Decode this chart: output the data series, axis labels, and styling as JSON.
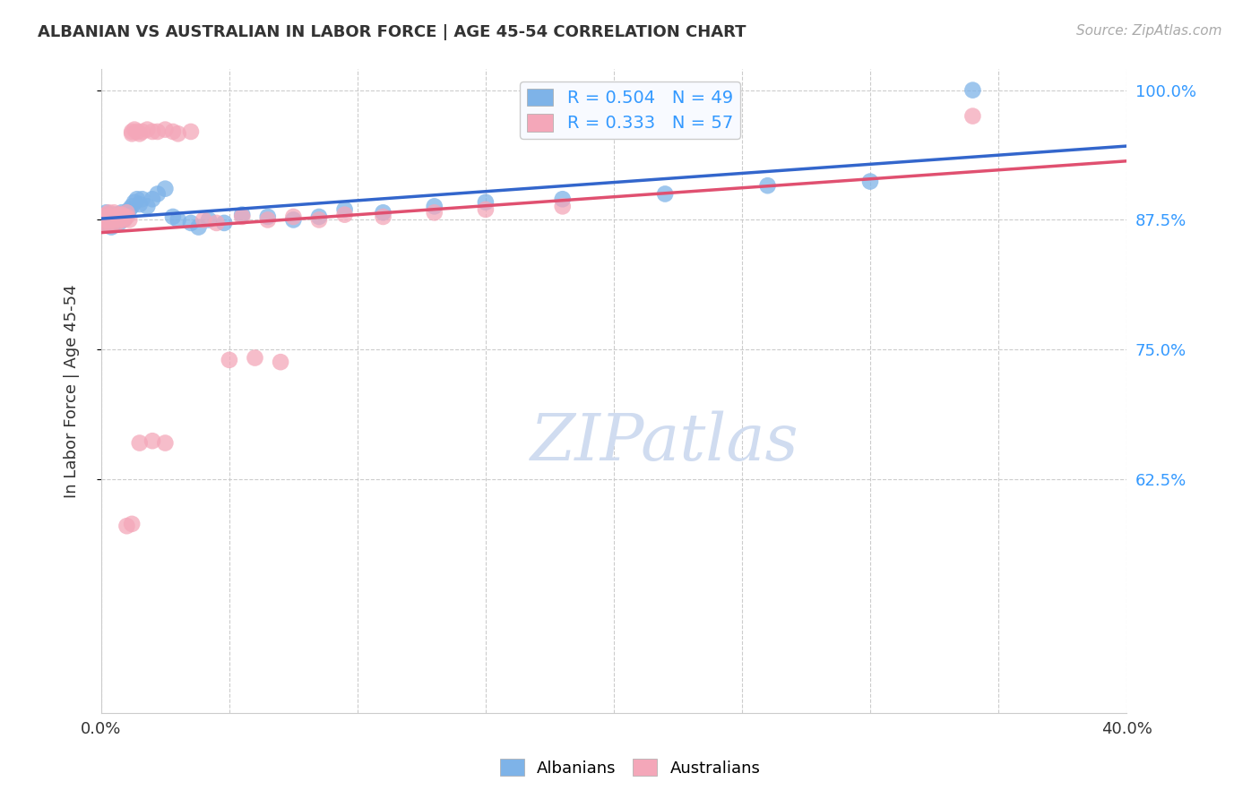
{
  "title": "ALBANIAN VS AUSTRALIAN IN LABOR FORCE | AGE 45-54 CORRELATION CHART",
  "source": "Source: ZipAtlas.com",
  "ylabel": "In Labor Force | Age 45-54",
  "xlim": [
    0.0,
    0.4
  ],
  "ylim": [
    0.4,
    1.02
  ],
  "yticks": [
    1.0,
    0.875,
    0.75,
    0.625
  ],
  "ytick_labels": [
    "100.0%",
    "87.5%",
    "75.0%",
    "62.5%"
  ],
  "xticks": [
    0.0,
    0.05,
    0.1,
    0.15,
    0.2,
    0.25,
    0.3,
    0.35,
    0.4
  ],
  "albanian_color": "#7EB3E8",
  "australian_color": "#F4A7B9",
  "line_blue": "#3366CC",
  "line_pink": "#E05070",
  "r_albanian": 0.504,
  "n_albanian": 49,
  "r_australian": 0.333,
  "n_australian": 57,
  "watermark_color": "#D0DCF0",
  "albanian_x": [
    0.0008,
    0.0012,
    0.0015,
    0.002,
    0.002,
    0.003,
    0.003,
    0.004,
    0.004,
    0.005,
    0.005,
    0.006,
    0.006,
    0.007,
    0.007,
    0.008,
    0.008,
    0.009,
    0.009,
    0.01,
    0.011,
    0.012,
    0.013,
    0.014,
    0.015,
    0.016,
    0.018,
    0.02,
    0.022,
    0.025,
    0.028,
    0.03,
    0.035,
    0.038,
    0.042,
    0.048,
    0.055,
    0.065,
    0.075,
    0.085,
    0.095,
    0.11,
    0.13,
    0.15,
    0.18,
    0.22,
    0.26,
    0.3,
    0.34
  ],
  "albanian_y": [
    0.878,
    0.872,
    0.876,
    0.87,
    0.882,
    0.875,
    0.88,
    0.868,
    0.875,
    0.872,
    0.88,
    0.875,
    0.878,
    0.872,
    0.88,
    0.878,
    0.882,
    0.876,
    0.88,
    0.882,
    0.885,
    0.888,
    0.892,
    0.895,
    0.89,
    0.895,
    0.888,
    0.895,
    0.9,
    0.905,
    0.878,
    0.875,
    0.872,
    0.868,
    0.875,
    0.872,
    0.88,
    0.878,
    0.875,
    0.878,
    0.885,
    0.882,
    0.888,
    0.892,
    0.895,
    0.9,
    0.908,
    0.912,
    1.0
  ],
  "australian_x": [
    0.0008,
    0.001,
    0.0015,
    0.002,
    0.002,
    0.003,
    0.003,
    0.003,
    0.004,
    0.004,
    0.005,
    0.005,
    0.005,
    0.006,
    0.006,
    0.007,
    0.007,
    0.008,
    0.008,
    0.009,
    0.009,
    0.01,
    0.01,
    0.011,
    0.012,
    0.012,
    0.013,
    0.014,
    0.015,
    0.016,
    0.018,
    0.02,
    0.022,
    0.025,
    0.028,
    0.03,
    0.035,
    0.04,
    0.045,
    0.055,
    0.065,
    0.075,
    0.085,
    0.095,
    0.11,
    0.13,
    0.15,
    0.18,
    0.05,
    0.06,
    0.07,
    0.015,
    0.02,
    0.025,
    0.01,
    0.012,
    0.34
  ],
  "australian_y": [
    0.878,
    0.872,
    0.875,
    0.87,
    0.88,
    0.875,
    0.878,
    0.882,
    0.87,
    0.875,
    0.878,
    0.882,
    0.875,
    0.872,
    0.878,
    0.875,
    0.88,
    0.876,
    0.88,
    0.875,
    0.878,
    0.882,
    0.878,
    0.875,
    0.96,
    0.958,
    0.962,
    0.96,
    0.958,
    0.96,
    0.962,
    0.96,
    0.96,
    0.962,
    0.96,
    0.958,
    0.96,
    0.875,
    0.872,
    0.878,
    0.875,
    0.878,
    0.875,
    0.88,
    0.878,
    0.882,
    0.885,
    0.888,
    0.74,
    0.742,
    0.738,
    0.66,
    0.662,
    0.66,
    0.58,
    0.582,
    0.975
  ]
}
